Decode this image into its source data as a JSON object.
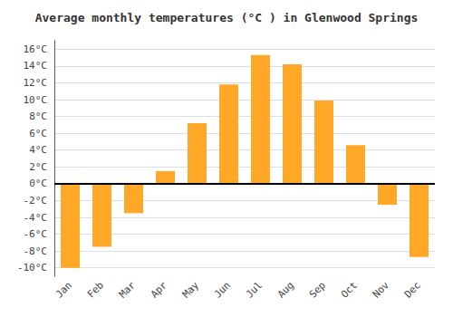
{
  "chart_data": {
    "type": "bar",
    "title": "Average monthly temperatures (°C ) in Glenwood Springs",
    "categories": [
      "Jan",
      "Feb",
      "Mar",
      "Apr",
      "May",
      "Jun",
      "Jul",
      "Aug",
      "Sep",
      "Oct",
      "Nov",
      "Dec"
    ],
    "values": [
      -10,
      -7.5,
      -3.5,
      1.5,
      7.2,
      11.8,
      15.3,
      14.2,
      9.9,
      4.6,
      -2.5,
      -8.7
    ],
    "color": "#FFA726",
    "ylim": [
      -11,
      17
    ],
    "yticks": [
      {
        "value": -10,
        "label": "-10°C"
      },
      {
        "value": -8,
        "label": "-8°C"
      },
      {
        "value": -6,
        "label": "-6°C"
      },
      {
        "value": -4,
        "label": "-4°C"
      },
      {
        "value": -2,
        "label": "-2°C"
      },
      {
        "value": 0,
        "label": "0°C"
      },
      {
        "value": 2,
        "label": "2°C"
      },
      {
        "value": 4,
        "label": "4°C"
      },
      {
        "value": 6,
        "label": "6°C"
      },
      {
        "value": 8,
        "label": "8°C"
      },
      {
        "value": 10,
        "label": "10°C"
      },
      {
        "value": 12,
        "label": "12°C"
      },
      {
        "value": 14,
        "label": "14°C"
      },
      {
        "value": 16,
        "label": "16°C"
      }
    ],
    "grid": true
  }
}
